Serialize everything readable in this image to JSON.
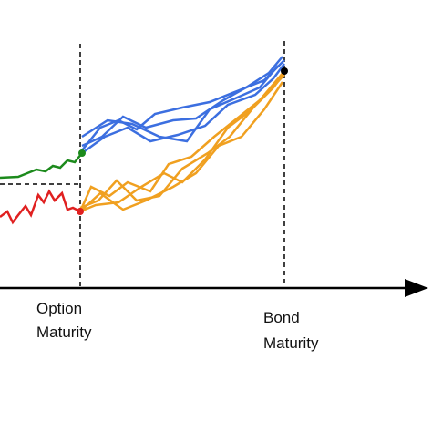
{
  "annotations": [
    {
      "lines": [
        "Option",
        "Maturity"
      ]
    },
    {
      "lines": [
        "Bond",
        "Maturity"
      ]
    }
  ]
}
